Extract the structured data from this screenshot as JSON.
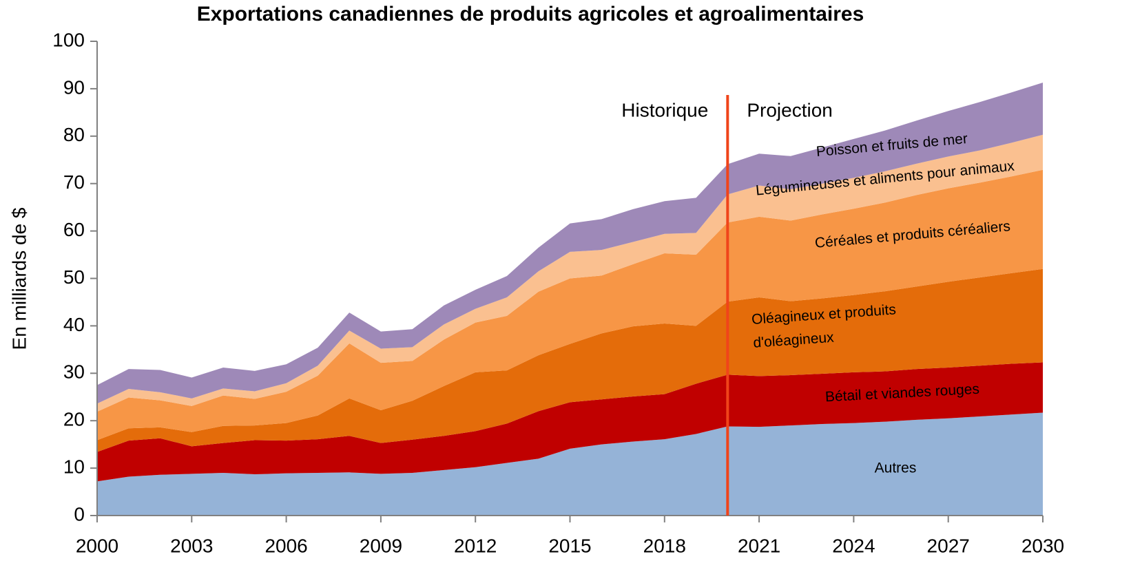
{
  "chart_data": {
    "type": "stacked_area",
    "title": "Exportations canadiennes de produits agricoles et agroalimentaires",
    "ylabel": "En milliards de $",
    "x": [
      2000,
      2001,
      2002,
      2003,
      2004,
      2005,
      2006,
      2007,
      2008,
      2009,
      2010,
      2011,
      2012,
      2013,
      2014,
      2015,
      2016,
      2017,
      2018,
      2019,
      2020,
      2021,
      2022,
      2023,
      2024,
      2025,
      2026,
      2027,
      2028,
      2029,
      2030
    ],
    "xlim": [
      2000,
      2030
    ],
    "xticks": [
      2000,
      2003,
      2006,
      2009,
      2012,
      2015,
      2018,
      2021,
      2024,
      2027,
      2030
    ],
    "ylim": [
      0,
      100
    ],
    "yticks": [
      0,
      10,
      20,
      30,
      40,
      50,
      60,
      70,
      80,
      90,
      100
    ],
    "annotations": {
      "left": "Historique",
      "right": "Projection",
      "divider_x": 2020,
      "divider_color": "#f0441a"
    },
    "series": [
      {
        "name": "Autres",
        "color": "#95b3d7",
        "values": [
          7.2,
          8.2,
          8.6,
          8.8,
          9.0,
          8.7,
          8.9,
          9.0,
          9.1,
          8.8,
          9.0,
          9.6,
          10.2,
          11.1,
          12.0,
          14.1,
          15.0,
          15.6,
          16.1,
          17.2,
          18.8,
          18.7,
          19.0,
          19.3,
          19.5,
          19.8,
          20.2,
          20.5,
          20.9,
          21.3,
          21.7
        ]
      },
      {
        "name": "Bétail et viandes rouges",
        "color": "#c00000",
        "values": [
          6.2,
          7.6,
          7.7,
          5.8,
          6.3,
          7.2,
          6.9,
          7.1,
          7.7,
          6.5,
          7.0,
          7.2,
          7.6,
          8.3,
          10.0,
          9.8,
          9.5,
          9.5,
          9.5,
          10.6,
          10.9,
          10.7,
          10.6,
          10.6,
          10.7,
          10.6,
          10.7,
          10.7,
          10.7,
          10.7,
          10.6
        ]
      },
      {
        "name": "Oléagineux et produits d'oléagineux",
        "color": "#e46c0a",
        "values": [
          2.5,
          2.6,
          2.3,
          3.0,
          3.6,
          3.1,
          3.7,
          5.0,
          7.9,
          6.9,
          8.2,
          10.5,
          12.4,
          11.2,
          11.8,
          12.3,
          13.9,
          14.8,
          14.9,
          12.2,
          15.4,
          16.6,
          15.6,
          15.9,
          16.3,
          16.9,
          17.4,
          18.1,
          18.6,
          19.1,
          19.7
        ]
      },
      {
        "name": "Céréales et produits céréaliers",
        "color": "#f79646",
        "values": [
          6.0,
          6.5,
          5.7,
          5.5,
          6.4,
          5.6,
          6.6,
          8.4,
          11.6,
          10.0,
          8.4,
          9.8,
          10.5,
          11.5,
          13.4,
          13.8,
          12.2,
          13.1,
          14.8,
          15.0,
          16.7,
          17.0,
          17.0,
          17.7,
          18.2,
          18.7,
          19.3,
          19.7,
          20.0,
          20.4,
          20.9
        ]
      },
      {
        "name": "Légumineuses et aliments pour animaux",
        "color": "#fac090",
        "values": [
          1.7,
          1.8,
          1.7,
          1.6,
          1.5,
          1.6,
          1.8,
          2.1,
          2.7,
          3.0,
          2.9,
          3.2,
          2.9,
          3.9,
          4.3,
          5.6,
          5.4,
          4.7,
          4.1,
          4.6,
          5.9,
          6.6,
          6.6,
          6.5,
          6.5,
          6.6,
          6.6,
          6.7,
          6.8,
          7.1,
          7.4
        ]
      },
      {
        "name": "Poisson et fruits de mer",
        "color": "#9e89b8",
        "values": [
          3.9,
          4.2,
          4.7,
          4.4,
          4.4,
          4.3,
          4.0,
          3.8,
          3.8,
          3.6,
          3.8,
          4.0,
          4.0,
          4.5,
          5.0,
          6.0,
          6.5,
          6.9,
          6.9,
          7.4,
          6.4,
          6.7,
          7.0,
          7.6,
          8.2,
          8.6,
          9.1,
          9.6,
          10.2,
          10.6,
          11.0
        ]
      }
    ]
  }
}
